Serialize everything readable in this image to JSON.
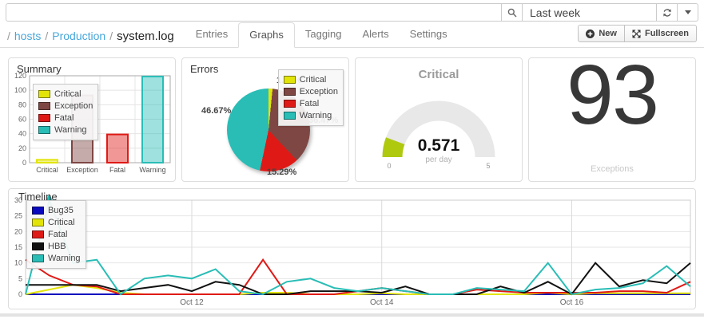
{
  "topbar": {
    "search_value": "",
    "time_range_value": "Last week"
  },
  "header": {
    "breadcrumb": {
      "separator": "/",
      "items": [
        "hosts",
        "Production",
        "system.log"
      ]
    },
    "tabs": [
      {
        "label": "Entries",
        "active": false
      },
      {
        "label": "Graphs",
        "active": true
      },
      {
        "label": "Tagging",
        "active": false
      },
      {
        "label": "Alerts",
        "active": false
      },
      {
        "label": "Settings",
        "active": false
      }
    ],
    "actions": {
      "new": "New",
      "fullscreen": "Fullscreen"
    }
  },
  "colors": {
    "link_blue": "#47a7da",
    "critical_yellow": "#e2e408",
    "exception_maroon": "#7e4743",
    "fatal_red": "#df1a16",
    "warning_teal": "#29bdb6",
    "bug35_blue": "#0909be",
    "hbb_black": "#111111",
    "gauge_green": "#afc90f",
    "gauge_track": "#e8e8e8"
  },
  "chart_data": [
    {
      "id": "summary",
      "type": "bar",
      "title": "Summary",
      "categories": [
        "Critical",
        "Exception",
        "Fatal",
        "Warning"
      ],
      "values": [
        4,
        93,
        39,
        119
      ],
      "colors": [
        "#e2e408",
        "#7e4743",
        "#df1a16",
        "#29bdb6"
      ],
      "ylim": [
        0,
        120
      ],
      "ytick_step": 20,
      "grid": true,
      "legend_position": "top-left"
    },
    {
      "id": "errors",
      "type": "pie",
      "title": "Errors",
      "labels": [
        "Critical",
        "Exception",
        "Fatal",
        "Warning"
      ],
      "values": [
        1.57,
        36.47,
        15.29,
        46.67
      ],
      "display": [
        "1.57%",
        "36.47%",
        "15.29%",
        "46.67%"
      ],
      "colors": [
        "#e2e408",
        "#7e4743",
        "#df1a16",
        "#29bdb6"
      ],
      "legend_position": "top-right"
    },
    {
      "id": "critical-gauge",
      "type": "gauge",
      "title": "Critical",
      "value": 0.571,
      "display": "0.571",
      "unit": "per day",
      "min": 0,
      "max": 5,
      "color": "#afc90f"
    },
    {
      "id": "exceptions-counter",
      "type": "counter",
      "value": "93",
      "label": "Exceptions"
    },
    {
      "id": "timeline",
      "type": "line",
      "title": "Timeline",
      "ylim": [
        0,
        30
      ],
      "ytick_step": 5,
      "grid": true,
      "legend_position": "top-left",
      "x_labels": [
        {
          "label": "Oct 12",
          "index": 7
        },
        {
          "label": "Oct 14",
          "index": 15
        },
        {
          "label": "Oct 16",
          "index": 23
        }
      ],
      "series": [
        {
          "name": "Bug35",
          "color": "#0909be",
          "values": [
            0,
            0,
            0,
            0,
            0,
            0,
            0,
            0,
            0,
            0,
            0,
            0,
            0,
            0,
            0,
            0,
            0,
            0,
            0,
            0,
            0,
            0,
            0,
            0,
            0,
            0,
            0,
            0,
            0
          ]
        },
        {
          "name": "Critical",
          "color": "#e2e408",
          "values": [
            0,
            1.5,
            3,
            2,
            0.5,
            0,
            0,
            0,
            0,
            0,
            0.5,
            0.5,
            0,
            0,
            0,
            0.3,
            0,
            0,
            0,
            0,
            0,
            0,
            0.5,
            0,
            0.3,
            0.3,
            0.3,
            0.3,
            0.3
          ]
        },
        {
          "name": "Fatal",
          "color": "#df1a16",
          "values": [
            11,
            6,
            3,
            2.5,
            0,
            0,
            0,
            0,
            0,
            0,
            11,
            0,
            0,
            0,
            1,
            2,
            1,
            0,
            0,
            1.5,
            1,
            0.5,
            0.5,
            0.5,
            0.5,
            1,
            1,
            0.5,
            4
          ]
        },
        {
          "name": "HBB",
          "color": "#111111",
          "values": [
            3,
            3,
            3,
            3,
            1,
            2,
            3,
            1,
            4,
            3,
            0,
            0,
            1,
            1,
            1,
            0.5,
            2.5,
            0,
            0,
            0,
            2.5,
            0.5,
            4,
            0,
            10,
            2.5,
            4.5,
            3.5,
            10
          ]
        },
        {
          "name": "Warning",
          "color": "#29bdb6",
          "values": [
            0,
            30,
            10,
            11,
            0,
            5,
            6,
            5,
            8,
            1,
            0,
            4,
            5,
            2,
            1,
            2,
            1,
            0,
            0,
            2,
            1.5,
            1,
            10,
            0,
            1.5,
            2,
            3.5,
            9,
            2.5
          ]
        }
      ],
      "clipped_marker": {
        "series": "Warning",
        "index": 1
      }
    }
  ]
}
